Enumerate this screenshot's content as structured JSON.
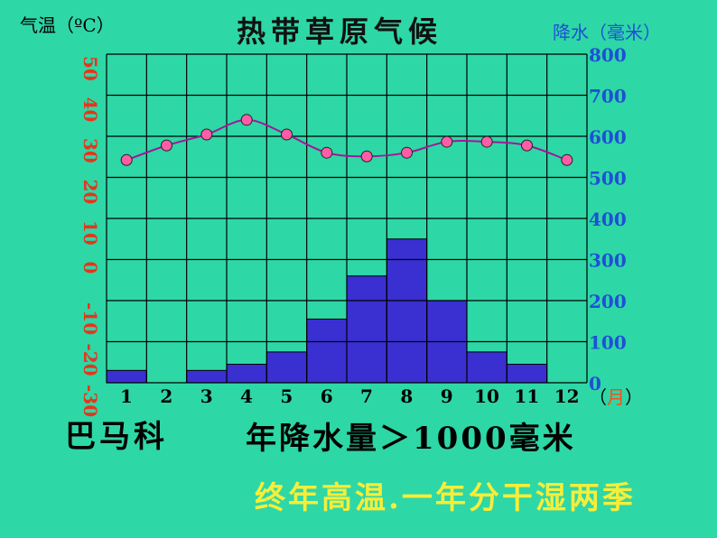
{
  "texts": {
    "title": "热带草原气候",
    "left_axis_label": "气温（ºC）",
    "right_axis_label": "降水（毫米）",
    "x_unit_prefix": "（",
    "x_unit_char": "月",
    "x_unit_suffix": "）",
    "station": "巴马科",
    "annual_precip": "年降水量＞1000毫米",
    "summary": "终年高温.一年分干湿两季"
  },
  "colors": {
    "background": "#2ed7a6",
    "grid": "#000000",
    "bar_fill": "#3a2fd0",
    "bar_stroke": "#000000",
    "temp_line": "#a0189a",
    "temp_marker": "#ff5ca8",
    "left_ticks": "#e8341a",
    "right_ticks": "#1f4fd6"
  },
  "chart_data": {
    "type": "bar+line",
    "categories": [
      "1",
      "2",
      "3",
      "4",
      "5",
      "6",
      "7",
      "8",
      "9",
      "10",
      "11",
      "12"
    ],
    "left_axis": {
      "ticks": [
        "50",
        "40",
        "30",
        "20",
        "10",
        "0",
        "-10",
        "-20",
        "-30"
      ],
      "ylim": [
        -40,
        50
      ]
    },
    "right_axis": {
      "ticks": [
        "800",
        "700",
        "600",
        "500",
        "400",
        "300",
        "200",
        "100",
        "0"
      ],
      "ylim": [
        0,
        800
      ]
    },
    "series": [
      {
        "axis": "right",
        "kind": "bar",
        "values": [
          30,
          0,
          30,
          45,
          75,
          155,
          260,
          350,
          200,
          75,
          45,
          0
        ]
      },
      {
        "axis": "left",
        "kind": "line",
        "values": [
          21,
          25,
          28,
          32,
          28,
          23,
          22,
          23,
          26,
          26,
          25,
          21
        ]
      }
    ]
  }
}
